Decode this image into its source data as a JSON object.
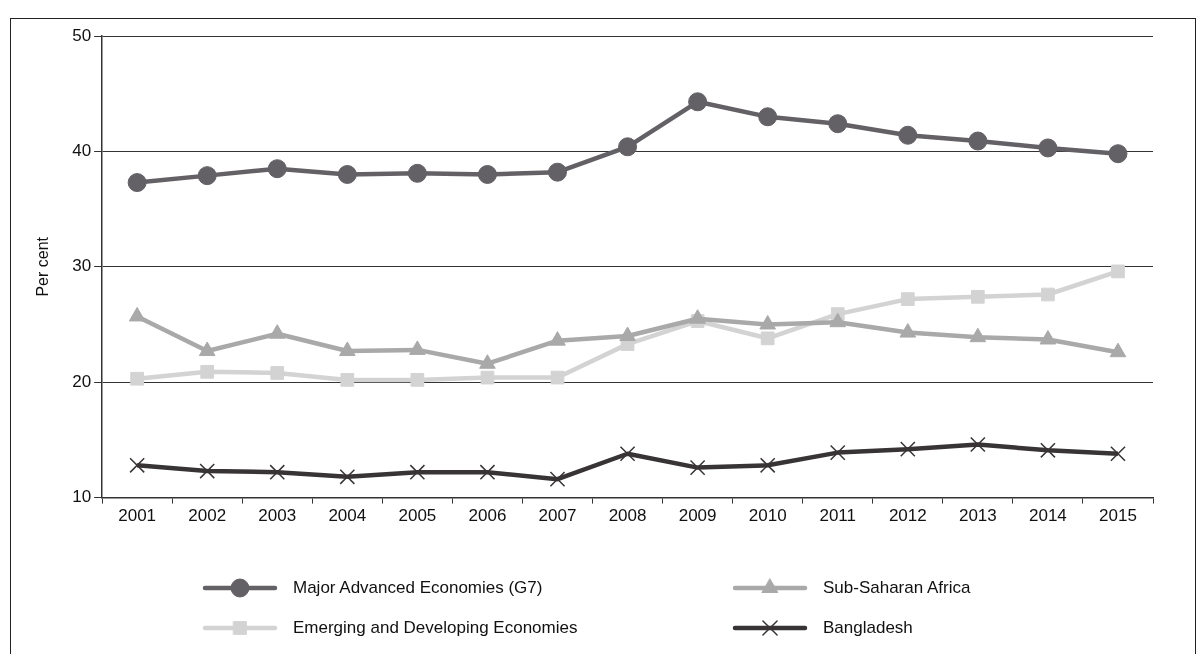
{
  "chart_data": {
    "type": "line",
    "ylabel": "Per cent",
    "categories": [
      "2001",
      "2002",
      "2003",
      "2004",
      "2005",
      "2006",
      "2007",
      "2008",
      "2009",
      "2010",
      "2011",
      "2012",
      "2013",
      "2014",
      "2015"
    ],
    "series": [
      {
        "name": "Major Advanced Economies (G7)",
        "color": "#636165",
        "marker": "circle",
        "values": [
          37.3,
          37.9,
          38.5,
          38.0,
          38.1,
          38.0,
          38.2,
          40.4,
          44.3,
          43.0,
          42.4,
          41.4,
          40.9,
          40.3,
          39.8
        ]
      },
      {
        "name": "Sub-Saharan Africa",
        "color": "#a9a9aa",
        "marker": "triangle",
        "values": [
          25.7,
          22.7,
          24.2,
          22.7,
          22.8,
          21.6,
          23.6,
          24.0,
          25.5,
          25.0,
          25.2,
          24.3,
          23.9,
          23.7,
          22.6
        ]
      },
      {
        "name": "Emerging and Developing Economies",
        "color": "#d3d3d3",
        "marker": "square",
        "values": [
          20.3,
          20.9,
          20.8,
          20.2,
          20.2,
          20.4,
          20.4,
          23.3,
          25.3,
          23.8,
          25.9,
          27.2,
          27.4,
          27.6,
          29.6
        ]
      },
      {
        "name": "Bangladesh",
        "color": "#383435",
        "marker": "cross",
        "values": [
          12.8,
          12.3,
          12.2,
          11.8,
          12.2,
          12.2,
          11.6,
          13.8,
          12.6,
          12.8,
          13.9,
          14.2,
          14.6,
          14.1,
          13.8
        ]
      }
    ],
    "ylim": [
      10,
      50
    ],
    "yticks": [
      10,
      20,
      30,
      40,
      50
    ],
    "grid": "y",
    "legend": "bottom",
    "line_style": "solid"
  }
}
